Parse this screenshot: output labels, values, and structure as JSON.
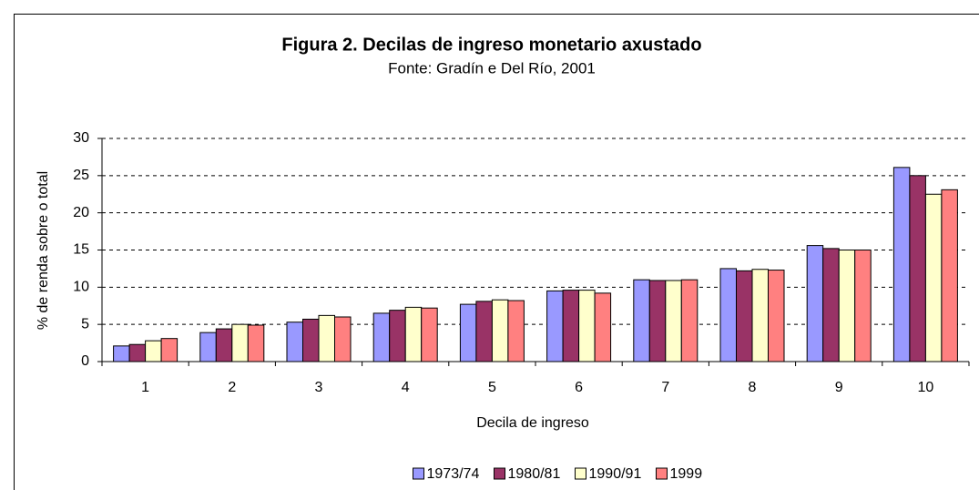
{
  "chart_data": {
    "type": "bar",
    "title": "Figura 2. Decilas de ingreso monetario axustado",
    "subtitle": "Fonte: Gradín e Del Río, 2001",
    "x_label": "Decila de ingreso",
    "y_label": "% de renda sobre o total",
    "categories": [
      "1",
      "2",
      "3",
      "4",
      "5",
      "6",
      "7",
      "8",
      "9",
      "10"
    ],
    "series": [
      {
        "name": "1973/74",
        "color": "#9999ff",
        "values": [
          2.1,
          3.9,
          5.3,
          6.5,
          7.7,
          9.5,
          11.0,
          12.5,
          15.6,
          26.1
        ]
      },
      {
        "name": "1980/81",
        "color": "#993366",
        "values": [
          2.3,
          4.4,
          5.7,
          6.9,
          8.1,
          9.6,
          10.9,
          12.2,
          15.2,
          25.0
        ]
      },
      {
        "name": "1990/91",
        "color": "#ffffcc",
        "values": [
          2.8,
          5.0,
          6.2,
          7.3,
          8.3,
          9.6,
          10.9,
          12.4,
          15.0,
          22.5
        ]
      },
      {
        "name": "1999",
        "color": "#ff8080",
        "values": [
          3.1,
          4.9,
          6.0,
          7.2,
          8.2,
          9.2,
          11.0,
          12.3,
          15.0,
          23.1
        ]
      }
    ],
    "ylim": [
      0,
      30
    ],
    "yticks": [
      0,
      5,
      10,
      15,
      20,
      25,
      30
    ],
    "grid": true,
    "legend": "bottom"
  }
}
